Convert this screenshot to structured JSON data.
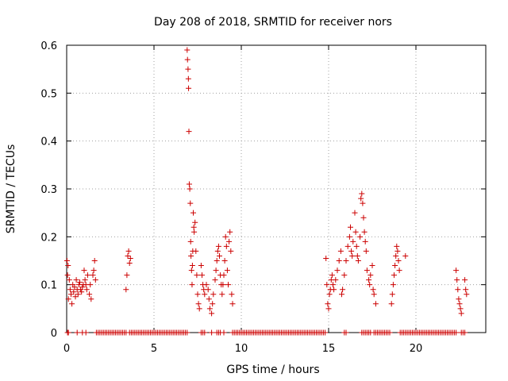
{
  "chart_data": {
    "type": "scatter",
    "title": "Day 208 of 2018, SRMTID for receiver nors",
    "xlabel": "GPS time / hours",
    "ylabel": "SRMTID / TECUs",
    "xlim": [
      0,
      24
    ],
    "ylim": [
      0,
      0.6
    ],
    "xticks": [
      0,
      5,
      10,
      15,
      20
    ],
    "yticks": [
      0,
      0.1,
      0.2,
      0.3,
      0.4,
      0.5,
      0.6
    ],
    "xtick_labels": [
      "0",
      "5",
      "10",
      "15",
      "20"
    ],
    "ytick_labels": [
      "0",
      "0.1",
      "0.2",
      "0.3",
      "0.4",
      "0.5",
      "0.6"
    ],
    "grid": true,
    "marker": "+",
    "color": "#cc0000",
    "series": [
      {
        "name": "SRMTID",
        "points": [
          [
            0.02,
            0.15
          ],
          [
            0.05,
            0.12
          ],
          [
            0.08,
            0.14
          ],
          [
            0.1,
            0.07
          ],
          [
            0.15,
            0.11
          ],
          [
            0.2,
            0.09
          ],
          [
            0.25,
            0.08
          ],
          [
            0.3,
            0.06
          ],
          [
            0.35,
            0.1
          ],
          [
            0.4,
            0.085
          ],
          [
            0.45,
            0.095
          ],
          [
            0.5,
            0.075
          ],
          [
            0.55,
            0.11
          ],
          [
            0.6,
            0.09
          ],
          [
            0.65,
            0.08
          ],
          [
            0.7,
            0.1
          ],
          [
            0.75,
            0.105
          ],
          [
            0.8,
            0.09
          ],
          [
            0.85,
            0.085
          ],
          [
            0.9,
            0.095
          ],
          [
            0.95,
            0.1
          ],
          [
            1.0,
            0.13
          ],
          [
            1.05,
            0.11
          ],
          [
            1.1,
            0.1
          ],
          [
            1.15,
            0.09
          ],
          [
            1.2,
            0.12
          ],
          [
            1.3,
            0.08
          ],
          [
            1.35,
            0.1
          ],
          [
            1.4,
            0.07
          ],
          [
            1.5,
            0.12
          ],
          [
            1.55,
            0.13
          ],
          [
            1.6,
            0.15
          ],
          [
            1.65,
            0.11
          ],
          [
            3.4,
            0.09
          ],
          [
            3.45,
            0.12
          ],
          [
            3.5,
            0.16
          ],
          [
            3.55,
            0.17
          ],
          [
            3.6,
            0.145
          ],
          [
            3.65,
            0.155
          ],
          [
            6.9,
            0.59
          ],
          [
            6.92,
            0.57
          ],
          [
            6.95,
            0.55
          ],
          [
            6.97,
            0.53
          ],
          [
            6.98,
            0.51
          ],
          [
            7.0,
            0.42
          ],
          [
            7.02,
            0.31
          ],
          [
            7.05,
            0.3
          ],
          [
            7.08,
            0.27
          ],
          [
            7.1,
            0.19
          ],
          [
            7.12,
            0.16
          ],
          [
            7.15,
            0.13
          ],
          [
            7.18,
            0.1
          ],
          [
            7.2,
            0.14
          ],
          [
            7.22,
            0.17
          ],
          [
            7.25,
            0.25
          ],
          [
            7.28,
            0.22
          ],
          [
            7.3,
            0.21
          ],
          [
            7.35,
            0.23
          ],
          [
            7.4,
            0.17
          ],
          [
            7.45,
            0.12
          ],
          [
            7.5,
            0.08
          ],
          [
            7.55,
            0.06
          ],
          [
            7.6,
            0.05
          ],
          [
            7.7,
            0.14
          ],
          [
            7.75,
            0.12
          ],
          [
            7.8,
            0.1
          ],
          [
            7.85,
            0.09
          ],
          [
            7.9,
            0.08
          ],
          [
            8.0,
            0.1
          ],
          [
            8.1,
            0.09
          ],
          [
            8.15,
            0.07
          ],
          [
            8.2,
            0.05
          ],
          [
            8.3,
            0.04
          ],
          [
            8.35,
            0.06
          ],
          [
            8.4,
            0.08
          ],
          [
            8.5,
            0.11
          ],
          [
            8.55,
            0.13
          ],
          [
            8.6,
            0.15
          ],
          [
            8.65,
            0.17
          ],
          [
            8.7,
            0.18
          ],
          [
            8.75,
            0.16
          ],
          [
            8.8,
            0.12
          ],
          [
            8.85,
            0.1
          ],
          [
            8.9,
            0.08
          ],
          [
            8.95,
            0.1
          ],
          [
            9.0,
            0.12
          ],
          [
            9.05,
            0.15
          ],
          [
            9.1,
            0.2
          ],
          [
            9.15,
            0.18
          ],
          [
            9.2,
            0.13
          ],
          [
            9.25,
            0.1
          ],
          [
            9.3,
            0.19
          ],
          [
            9.35,
            0.21
          ],
          [
            9.4,
            0.17
          ],
          [
            9.45,
            0.08
          ],
          [
            9.5,
            0.06
          ],
          [
            14.85,
            0.155
          ],
          [
            14.9,
            0.1
          ],
          [
            14.95,
            0.06
          ],
          [
            15.0,
            0.05
          ],
          [
            15.05,
            0.08
          ],
          [
            15.1,
            0.09
          ],
          [
            15.15,
            0.11
          ],
          [
            15.2,
            0.12
          ],
          [
            15.25,
            0.1
          ],
          [
            15.3,
            0.09
          ],
          [
            15.4,
            0.11
          ],
          [
            15.5,
            0.13
          ],
          [
            15.6,
            0.15
          ],
          [
            15.7,
            0.17
          ],
          [
            15.75,
            0.08
          ],
          [
            15.8,
            0.09
          ],
          [
            15.9,
            0.12
          ],
          [
            16.0,
            0.15
          ],
          [
            16.1,
            0.18
          ],
          [
            16.2,
            0.2
          ],
          [
            16.25,
            0.22
          ],
          [
            16.3,
            0.17
          ],
          [
            16.35,
            0.16
          ],
          [
            16.4,
            0.19
          ],
          [
            16.5,
            0.25
          ],
          [
            16.55,
            0.21
          ],
          [
            16.6,
            0.18
          ],
          [
            16.65,
            0.16
          ],
          [
            16.7,
            0.15
          ],
          [
            16.8,
            0.2
          ],
          [
            16.85,
            0.28
          ],
          [
            16.9,
            0.29
          ],
          [
            16.95,
            0.27
          ],
          [
            17.0,
            0.24
          ],
          [
            17.05,
            0.21
          ],
          [
            17.1,
            0.19
          ],
          [
            17.15,
            0.17
          ],
          [
            17.2,
            0.13
          ],
          [
            17.3,
            0.11
          ],
          [
            17.35,
            0.1
          ],
          [
            17.4,
            0.12
          ],
          [
            17.5,
            0.14
          ],
          [
            17.55,
            0.09
          ],
          [
            17.6,
            0.08
          ],
          [
            17.7,
            0.06
          ],
          [
            18.6,
            0.06
          ],
          [
            18.65,
            0.08
          ],
          [
            18.7,
            0.1
          ],
          [
            18.75,
            0.12
          ],
          [
            18.8,
            0.14
          ],
          [
            18.85,
            0.16
          ],
          [
            18.9,
            0.18
          ],
          [
            18.95,
            0.17
          ],
          [
            19.0,
            0.15
          ],
          [
            19.05,
            0.13
          ],
          [
            19.4,
            0.16
          ],
          [
            22.3,
            0.13
          ],
          [
            22.35,
            0.11
          ],
          [
            22.4,
            0.09
          ],
          [
            22.45,
            0.07
          ],
          [
            22.5,
            0.06
          ],
          [
            22.55,
            0.05
          ],
          [
            22.6,
            0.04
          ],
          [
            22.8,
            0.11
          ],
          [
            22.85,
            0.09
          ],
          [
            22.9,
            0.08
          ]
        ]
      }
    ],
    "zero_points_x": [
      0.05,
      0.1,
      0.6,
      0.9,
      1.1,
      1.7,
      1.8,
      1.9,
      2.0,
      2.1,
      2.2,
      2.3,
      2.4,
      2.5,
      2.6,
      2.7,
      2.8,
      2.9,
      3.0,
      3.1,
      3.2,
      3.3,
      3.4,
      3.6,
      3.7,
      3.8,
      3.9,
      4.0,
      4.1,
      4.2,
      4.3,
      4.4,
      4.5,
      4.6,
      4.7,
      4.8,
      4.9,
      5.0,
      5.1,
      5.2,
      5.3,
      5.4,
      5.5,
      5.6,
      5.7,
      5.8,
      5.9,
      6.0,
      6.1,
      6.2,
      6.3,
      6.4,
      6.5,
      6.6,
      6.7,
      6.8,
      6.9,
      7.7,
      7.8,
      7.9,
      8.3,
      8.6,
      8.7,
      8.8,
      9.0,
      9.5,
      9.6,
      9.7,
      9.8,
      9.9,
      10.0,
      10.1,
      10.2,
      10.3,
      10.4,
      10.5,
      10.6,
      10.7,
      10.8,
      10.9,
      11.0,
      11.1,
      11.2,
      11.3,
      11.4,
      11.5,
      11.6,
      11.7,
      11.8,
      11.9,
      12.0,
      12.1,
      12.2,
      12.3,
      12.4,
      12.5,
      12.6,
      12.7,
      12.8,
      12.9,
      13.0,
      13.1,
      13.2,
      13.3,
      13.4,
      13.5,
      13.6,
      13.7,
      13.8,
      13.9,
      14.0,
      14.1,
      14.2,
      14.3,
      14.4,
      14.5,
      14.6,
      14.7,
      14.8,
      15.9,
      16.0,
      16.9,
      17.0,
      17.1,
      17.2,
      17.3,
      17.4,
      17.6,
      17.7,
      17.8,
      17.9,
      18.0,
      18.1,
      18.2,
      18.3,
      18.4,
      18.5,
      19.1,
      19.2,
      19.3,
      19.4,
      19.5,
      19.6,
      19.7,
      19.8,
      19.9,
      20.0,
      20.1,
      20.2,
      20.3,
      20.4,
      20.5,
      20.6,
      20.7,
      20.8,
      20.9,
      21.0,
      21.1,
      21.2,
      21.3,
      21.4,
      21.5,
      21.6,
      21.7,
      21.8,
      21.9,
      22.0,
      22.1,
      22.2,
      22.3,
      22.6,
      22.7,
      22.8
    ]
  }
}
